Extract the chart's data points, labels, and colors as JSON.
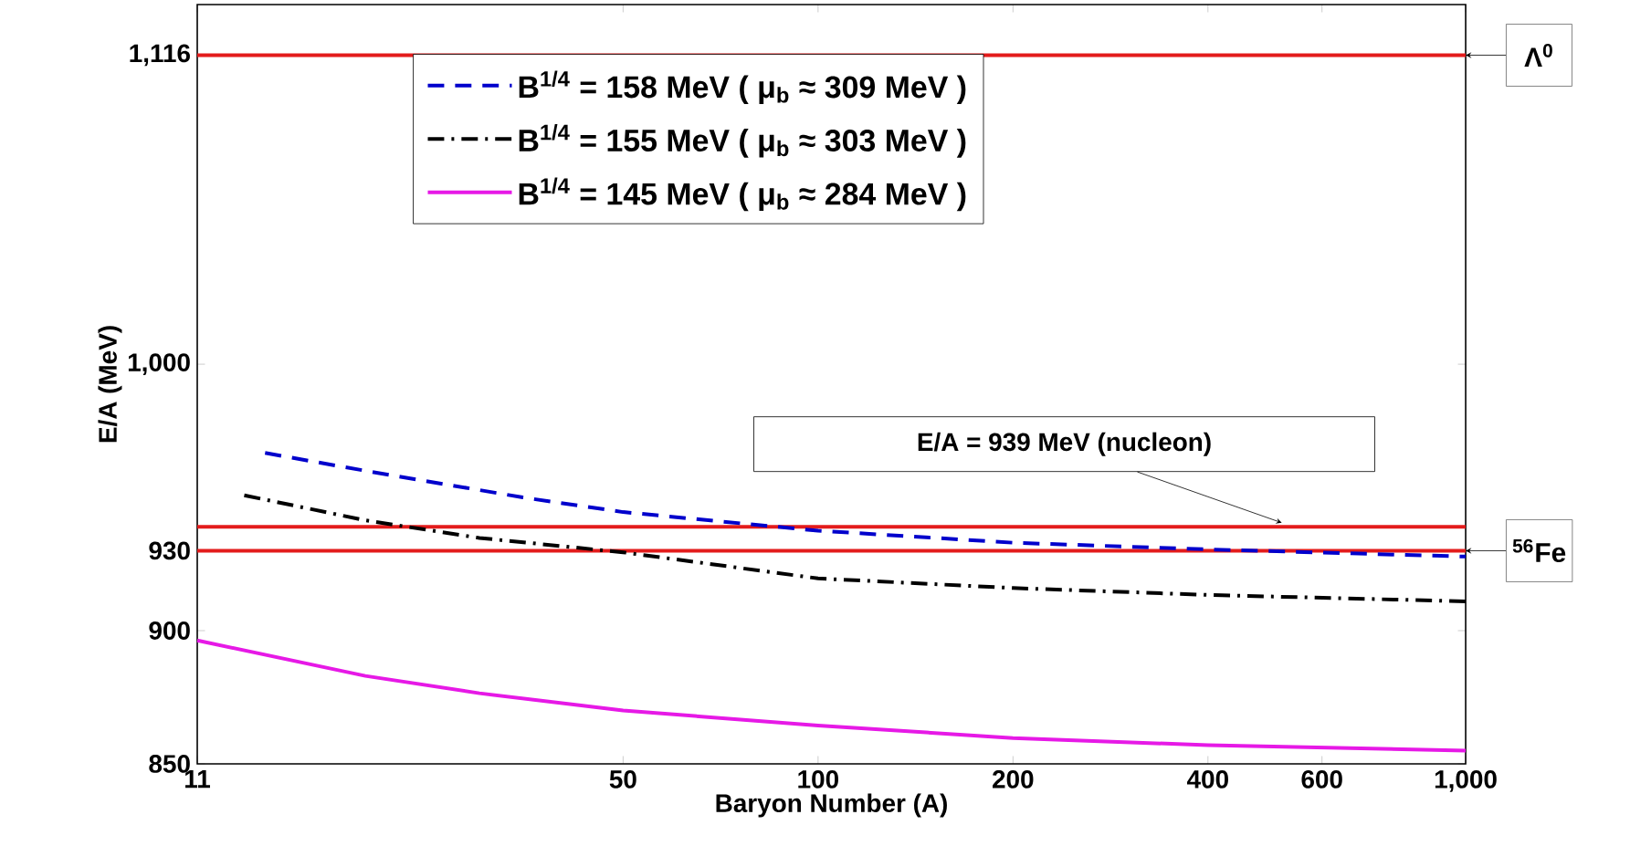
{
  "chart_data": {
    "type": "line",
    "xlabel": "Baryon Number (A)",
    "ylabel": "E/A (MeV)",
    "log": "x",
    "xlim": [
      11,
      1000
    ],
    "ylim": [
      850,
      1135
    ],
    "xticks": [
      11,
      50,
      100,
      200,
      400,
      600,
      {
        "value": 1000,
        "label": "1,000"
      }
    ],
    "yticks": [
      850,
      900,
      930,
      {
        "value": 1000,
        "label": "1,000"
      },
      {
        "value": 1116,
        "label": "1,116"
      }
    ],
    "legend": "top",
    "grid": false,
    "series": [
      {
        "name": "B$^{1/4}$ = 158 MeV ( μ$_{b}$ ≈ 309 MeV )",
        "color": "#0000cc",
        "line_style": "dashed",
        "x": [
          14,
          20,
          35,
          50,
          100,
          200,
          400,
          1000
        ],
        "values": [
          966.7,
          960,
          950,
          944.5,
          937.5,
          933,
          930.5,
          927.8
        ]
      },
      {
        "name": "B$^{1/4}$ = 155 MeV ( μ$_{b}$ ≈ 303 MeV )",
        "color": "#000000",
        "line_style": "dashdot",
        "x": [
          13,
          20,
          30,
          50,
          100,
          200,
          400,
          1000
        ],
        "values": [
          950.8,
          941.4,
          934.8,
          929.4,
          919.6,
          916,
          913.4,
          911
        ]
      },
      {
        "name": "B$^{1/4}$ = 145 MeV ( μ$_{b}$ ≈ 284 MeV )",
        "color": "#e619e6",
        "line_style": "solid",
        "x": [
          11,
          20,
          30,
          50,
          100,
          200,
          400,
          1000
        ],
        "values": [
          896.3,
          883,
          876.5,
          870,
          864.4,
          859.7,
          857,
          855
        ]
      }
    ],
    "ref_lines": [
      {
        "axis": "y",
        "value": 1116,
        "label": "Λ$^{0}$",
        "color": "#e31c1c"
      },
      {
        "axis": "y",
        "value": 939,
        "label": "E/A = 939 MeV (nucleon)",
        "color": "#e31c1c"
      },
      {
        "axis": "y",
        "value": 930,
        "label": "$^{56}$Fe",
        "color": "#e31c1c"
      }
    ]
  }
}
